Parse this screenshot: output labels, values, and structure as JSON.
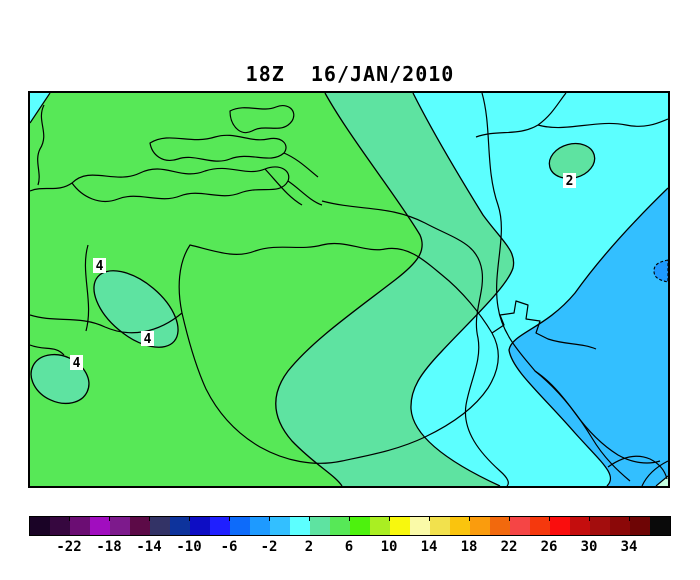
{
  "title": "18Z  16/JAN/2010",
  "regions": {
    "green_4_6": {
      "range": "4 to 6",
      "color": "#57e857"
    },
    "mint_2_4": {
      "range": "2 to 4",
      "color": "#5ee3a1"
    },
    "cyan_0_2": {
      "range": "0 to 2",
      "color": "#5cffff"
    },
    "blue_m2_0": {
      "range": "-2 to 0",
      "color": "#33bfff"
    },
    "deep_m4_m2": {
      "range": "-4 to -2",
      "color": "#1e9aff"
    },
    "pale_corner": {
      "range": "edge sliver",
      "color": "#c6ffe2"
    }
  },
  "map": {
    "coastline_color": "#000000",
    "contour_labels": [
      {
        "value": "4"
      },
      {
        "value": "4"
      },
      {
        "value": "4"
      },
      {
        "value": "2"
      }
    ]
  },
  "colorbar": {
    "tick_labels": [
      "-22",
      "-18",
      "-14",
      "-10",
      "-6",
      "-2",
      "2",
      "6",
      "10",
      "14",
      "18",
      "22",
      "26",
      "30",
      "34"
    ],
    "segment_value_step": 2,
    "min_value": -26,
    "max_value": 38,
    "segment_colors": [
      "#1a0326",
      "#36073f",
      "#6b0d73",
      "#a10dbf",
      "#7d1a8c",
      "#5c0a47",
      "#333366",
      "#0d339c",
      "#0d0dc4",
      "#1f1fff",
      "#0d6bfa",
      "#1e9aff",
      "#33bfff",
      "#5cffff",
      "#5ee3a1",
      "#57e857",
      "#4df20d",
      "#aaee22",
      "#f8f80d",
      "#fafaa8",
      "#f2e14d",
      "#fac40d",
      "#fa9c0d",
      "#f2690d",
      "#f54545",
      "#f5380d",
      "#fa0d0d",
      "#c40d0d",
      "#a30d0d",
      "#8b0808",
      "#6e0505",
      "#0a0a0a"
    ]
  },
  "chart_data": {
    "type": "heatmap",
    "title": "18Z  16/JAN/2010",
    "legend_position": "bottom horizontal colorbar",
    "colorbar_tick_labels": [
      -22,
      -18,
      -14,
      -10,
      -6,
      -2,
      2,
      6,
      10,
      14,
      18,
      22,
      26,
      30,
      34
    ],
    "contour_interval": 2,
    "labeled_contour_values": [
      4,
      4,
      4,
      2
    ],
    "visible_value_bands": [
      {
        "range": "4 to 6",
        "color": "#57e857",
        "coverage": "large western/left area"
      },
      {
        "range": "2 to 4",
        "color": "#5ee3a1",
        "coverage": "diagonal central band, two closed lows at left labeled 4, closed high at northeast labeled 2"
      },
      {
        "range": "0 to 2",
        "color": "#5cffff",
        "coverage": "eastern band"
      },
      {
        "range": "-2 to 0",
        "color": "#33bfff",
        "coverage": "southeastern lobe"
      },
      {
        "range": "-4 to -2",
        "color": "#1e9aff",
        "coverage": "tiny sliver on right edge"
      }
    ]
  }
}
